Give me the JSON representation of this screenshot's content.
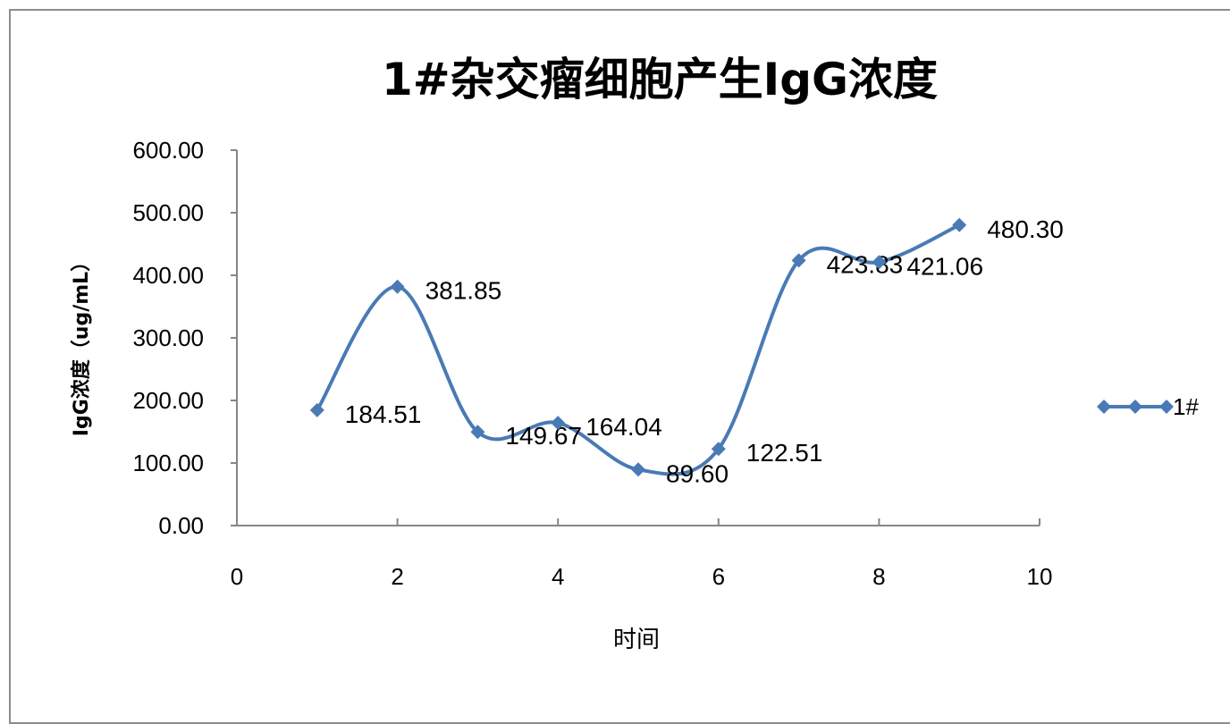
{
  "chart_data": {
    "type": "line",
    "title": "1#杂交瘤细胞产生IgG浓度",
    "xlabel": "时间",
    "ylabel": "IgG浓度（ug/mL）",
    "xlim": [
      0,
      10
    ],
    "ylim": [
      0,
      600
    ],
    "x_ticks": [
      "0",
      "2",
      "4",
      "6",
      "8",
      "10"
    ],
    "y_ticks": [
      "0.00",
      "100.00",
      "200.00",
      "300.00",
      "400.00",
      "500.00",
      "600.00"
    ],
    "smooth": true,
    "grid": false,
    "legend_position": "right",
    "series": [
      {
        "name": "1#",
        "color": "#4a7ab5",
        "marker": "diamond",
        "x": [
          1,
          2,
          3,
          4,
          5,
          6,
          7,
          8,
          9
        ],
        "values": [
          184.51,
          381.85,
          149.67,
          164.04,
          89.6,
          122.51,
          423.83,
          421.06,
          480.3
        ],
        "labels": [
          "184.51",
          "381.85",
          "149.67",
          "164.04",
          "89.60",
          "122.51",
          "423.83",
          "421.06",
          "480.30"
        ]
      }
    ]
  }
}
